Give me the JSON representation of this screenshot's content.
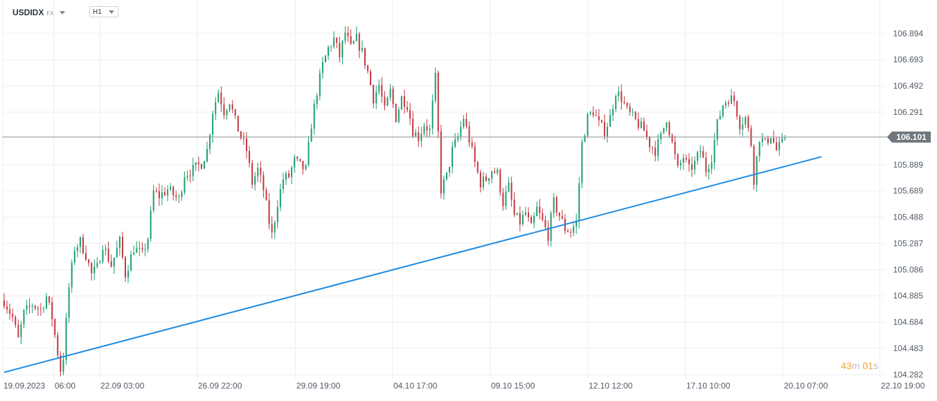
{
  "header": {
    "symbol": "USDIDX",
    "symbol_type": "FX",
    "timeframe": "H1"
  },
  "timer": {
    "minutes": "43",
    "minutes_unit": "m",
    "seconds": "01",
    "seconds_unit": "s"
  },
  "colors": {
    "bull": "#1a9e6d",
    "bear": "#c4343d",
    "trendline": "#1e8be0",
    "price_line": "#8a8f96",
    "price_tag_bg": "#6f767e",
    "grid": "#eceef1",
    "axis_text": "#505a66"
  },
  "chart_data": {
    "type": "candlestick",
    "title": "",
    "xlabel": "",
    "ylabel": "",
    "ylim": [
      104.25,
      107.15
    ],
    "y_ticks": [
      "106.894",
      "106.693",
      "106.492",
      "106.291",
      "105.889",
      "105.689",
      "105.488",
      "105.287",
      "105.086",
      "104.885",
      "104.684",
      "104.483",
      "104.282"
    ],
    "x_ticks": [
      "19.09.2023",
      "06:00",
      "22.09 03:00",
      "26.09 22:00",
      "29.09 19:00",
      "04.10 17:00",
      "09.10 15:00",
      "12.10 12:00",
      "17.10 10:00",
      "20.10 07:00",
      "22.10 19:00"
    ],
    "current_price": "106.101",
    "trendline": {
      "start": {
        "bar": 0,
        "price": 104.3
      },
      "end": {
        "bar": 290,
        "price": 105.95
      }
    },
    "close_path": [
      [
        0,
        104.85
      ],
      [
        3,
        104.72
      ],
      [
        5,
        104.55
      ],
      [
        7,
        104.75
      ],
      [
        10,
        104.82
      ],
      [
        13,
        104.78
      ],
      [
        15,
        104.88
      ],
      [
        17,
        104.72
      ],
      [
        19,
        104.45
      ],
      [
        20,
        104.32
      ],
      [
        21,
        104.42
      ],
      [
        23,
        104.95
      ],
      [
        25,
        105.25
      ],
      [
        27,
        105.3
      ],
      [
        29,
        105.2
      ],
      [
        31,
        105.05
      ],
      [
        33,
        105.1
      ],
      [
        35,
        105.28
      ],
      [
        38,
        105.12
      ],
      [
        41,
        105.3
      ],
      [
        43,
        105.05
      ],
      [
        46,
        105.25
      ],
      [
        49,
        105.2
      ],
      [
        51,
        105.33
      ],
      [
        53,
        105.68
      ],
      [
        55,
        105.65
      ],
      [
        58,
        105.7
      ],
      [
        62,
        105.62
      ],
      [
        64,
        105.82
      ],
      [
        67,
        105.85
      ],
      [
        70,
        105.9
      ],
      [
        72,
        106.0
      ],
      [
        74,
        106.3
      ],
      [
        76,
        106.45
      ],
      [
        78,
        106.3
      ],
      [
        80,
        106.38
      ],
      [
        82,
        106.22
      ],
      [
        84,
        106.1
      ],
      [
        86,
        106.0
      ],
      [
        88,
        105.75
      ],
      [
        90,
        105.85
      ],
      [
        92,
        105.7
      ],
      [
        94,
        105.45
      ],
      [
        95,
        105.35
      ],
      [
        97,
        105.6
      ],
      [
        99,
        105.78
      ],
      [
        101,
        105.8
      ],
      [
        103,
        105.92
      ],
      [
        105,
        105.88
      ],
      [
        107,
        105.85
      ],
      [
        109,
        106.2
      ],
      [
        111,
        106.45
      ],
      [
        113,
        106.65
      ],
      [
        115,
        106.78
      ],
      [
        117,
        106.85
      ],
      [
        119,
        106.72
      ],
      [
        121,
        106.9
      ],
      [
        123,
        106.78
      ],
      [
        125,
        106.85
      ],
      [
        127,
        106.75
      ],
      [
        129,
        106.6
      ],
      [
        131,
        106.4
      ],
      [
        133,
        106.5
      ],
      [
        135,
        106.3
      ],
      [
        137,
        106.45
      ],
      [
        139,
        106.25
      ],
      [
        141,
        106.4
      ],
      [
        143,
        106.35
      ],
      [
        145,
        106.15
      ],
      [
        147,
        106.1
      ],
      [
        149,
        106.2
      ],
      [
        151,
        106.15
      ],
      [
        153,
        106.55
      ],
      [
        155,
        105.7
      ],
      [
        157,
        105.8
      ],
      [
        159,
        106.0
      ],
      [
        161,
        106.1
      ],
      [
        163,
        106.25
      ],
      [
        165,
        106.08
      ],
      [
        167,
        105.9
      ],
      [
        169,
        105.75
      ],
      [
        171,
        105.78
      ],
      [
        173,
        105.85
      ],
      [
        175,
        105.82
      ],
      [
        177,
        105.6
      ],
      [
        179,
        105.72
      ],
      [
        181,
        105.5
      ],
      [
        183,
        105.45
      ],
      [
        185,
        105.52
      ],
      [
        187,
        105.4
      ],
      [
        189,
        105.55
      ],
      [
        191,
        105.45
      ],
      [
        193,
        105.35
      ],
      [
        195,
        105.6
      ],
      [
        197,
        105.5
      ],
      [
        199,
        105.4
      ],
      [
        201,
        105.38
      ],
      [
        203,
        105.45
      ],
      [
        205,
        106.05
      ],
      [
        207,
        106.25
      ],
      [
        209,
        106.3
      ],
      [
        211,
        106.2
      ],
      [
        213,
        106.15
      ],
      [
        215,
        106.25
      ],
      [
        217,
        106.45
      ],
      [
        219,
        106.4
      ],
      [
        221,
        106.3
      ],
      [
        223,
        106.25
      ],
      [
        225,
        106.2
      ],
      [
        227,
        106.15
      ],
      [
        229,
        106.05
      ],
      [
        231,
        106.0
      ],
      [
        233,
        106.1
      ],
      [
        235,
        106.25
      ],
      [
        237,
        106.05
      ],
      [
        239,
        105.85
      ],
      [
        241,
        105.95
      ],
      [
        243,
        105.85
      ],
      [
        245,
        105.9
      ],
      [
        247,
        106.0
      ],
      [
        249,
        105.85
      ],
      [
        251,
        105.95
      ],
      [
        253,
        106.2
      ],
      [
        255,
        106.35
      ],
      [
        257,
        106.4
      ],
      [
        259,
        106.38
      ],
      [
        261,
        106.2
      ],
      [
        263,
        106.25
      ],
      [
        265,
        106.05
      ],
      [
        266,
        105.78
      ],
      [
        268,
        106.1
      ],
      [
        270,
        106.05
      ],
      [
        272,
        106.12
      ],
      [
        274,
        106.0
      ],
      [
        276,
        106.05
      ],
      [
        277,
        106.1
      ]
    ]
  }
}
